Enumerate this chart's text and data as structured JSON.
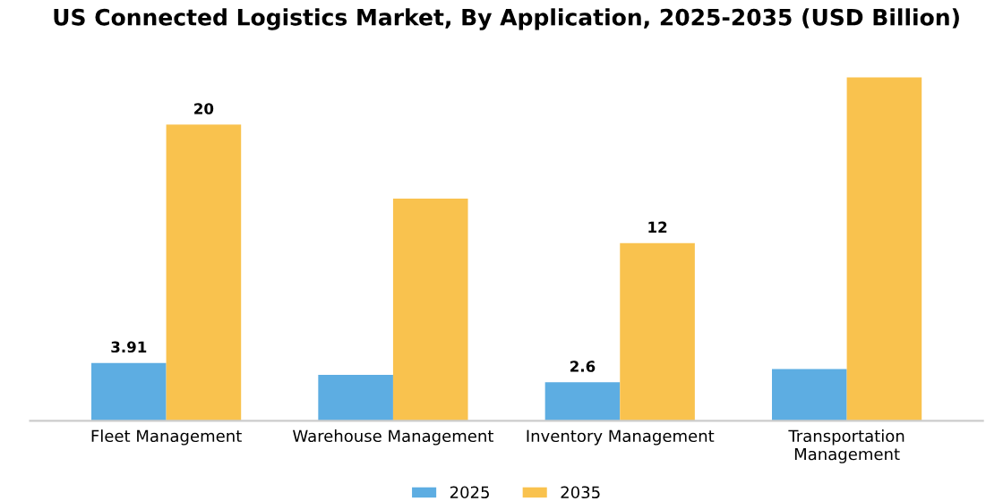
{
  "chart_data": {
    "type": "bar",
    "title": "US Connected Logistics Market, By Application, 2025-2035 (USD Billion)",
    "categories": [
      "Fleet Management",
      "Warehouse Management",
      "Inventory Management",
      "Transportation\nManagement"
    ],
    "series": [
      {
        "name": "2025",
        "color": "#5dade2",
        "values": [
          3.91,
          3.1,
          2.6,
          3.5
        ],
        "value_labels": [
          "3.91",
          null,
          "2.6",
          null
        ]
      },
      {
        "name": "2035",
        "color": "#f9c24e",
        "values": [
          20,
          15.0,
          12,
          23.2
        ],
        "value_labels": [
          "20",
          null,
          "12",
          null
        ]
      }
    ],
    "tick_labels": "x",
    "grid": false,
    "legend": "bottom"
  }
}
